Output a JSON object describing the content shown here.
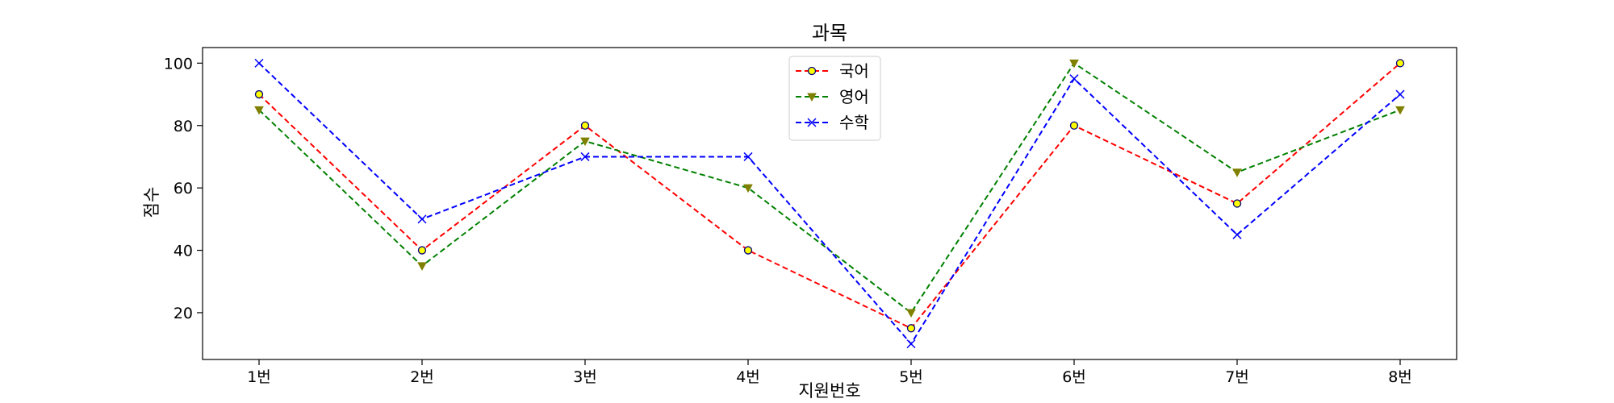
{
  "chart_data": {
    "type": "line",
    "title": "과목",
    "xlabel": "지원번호",
    "ylabel": "점수",
    "categories": [
      "1번",
      "2번",
      "3번",
      "4번",
      "5번",
      "6번",
      "7번",
      "8번"
    ],
    "ylim": [
      5,
      105
    ],
    "yticks": [
      20,
      40,
      60,
      80,
      100
    ],
    "grid": false,
    "legend_position": "top-center",
    "series": [
      {
        "name": "국어",
        "values": [
          90,
          40,
          80,
          40,
          15,
          80,
          55,
          100
        ],
        "color": "#ff0000",
        "linestyle": "dashed",
        "marker": "circle",
        "marker_face_color": "#ffff00",
        "marker_edge_color": "#000080"
      },
      {
        "name": "영어",
        "values": [
          85,
          35,
          75,
          60,
          20,
          100,
          65,
          85
        ],
        "color": "#008000",
        "linestyle": "dashed",
        "marker": "triangle-down",
        "marker_face_color": "#808000",
        "marker_edge_color": "#808000"
      },
      {
        "name": "수학",
        "values": [
          100,
          50,
          70,
          70,
          10,
          95,
          45,
          90
        ],
        "color": "#0000ff",
        "linestyle": "dashed",
        "marker": "x",
        "marker_face_color": "#0000ff",
        "marker_edge_color": "#0000ff"
      }
    ]
  }
}
